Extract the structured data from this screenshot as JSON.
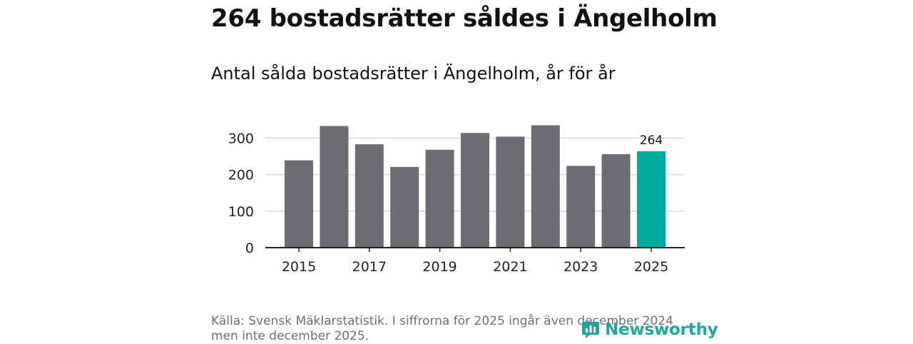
{
  "header": {
    "title": "264 bostadsrätter såldes i Ängelholm",
    "subtitle": "Antal sålda bostadsrätter i Ängelholm, år för år"
  },
  "footer": {
    "source": "Källa: Svensk Mäklarstatistik. I siffrorna för 2025 ingår även december 2024 men inte december 2025.",
    "logo_text": "Newsworthy"
  },
  "colors": {
    "bar": "#6d6c72",
    "highlight": "#00a99d",
    "grid": "#d9d9d9",
    "axis": "#222222",
    "logo": "#12a39a"
  },
  "chart_data": {
    "type": "bar",
    "title": "Antal sålda bostadsrätter i Ängelholm, år för år",
    "categories": [
      "2015",
      "2016",
      "2017",
      "2018",
      "2019",
      "2020",
      "2021",
      "2022",
      "2023",
      "2024",
      "2025"
    ],
    "values": [
      239,
      333,
      283,
      221,
      268,
      314,
      304,
      335,
      224,
      256,
      264
    ],
    "highlight_index": 10,
    "data_labels": [
      {
        "index": 10,
        "text": "264"
      }
    ],
    "y_ticks": [
      0,
      100,
      200,
      300
    ],
    "y_tick_labels": [
      "0",
      "100",
      "200",
      "300"
    ],
    "x_tick_labels": [
      "2015",
      "2017",
      "2019",
      "2021",
      "2023",
      "2025"
    ],
    "ylim": [
      0,
      340
    ],
    "grid": true,
    "xlabel": "",
    "ylabel": ""
  }
}
